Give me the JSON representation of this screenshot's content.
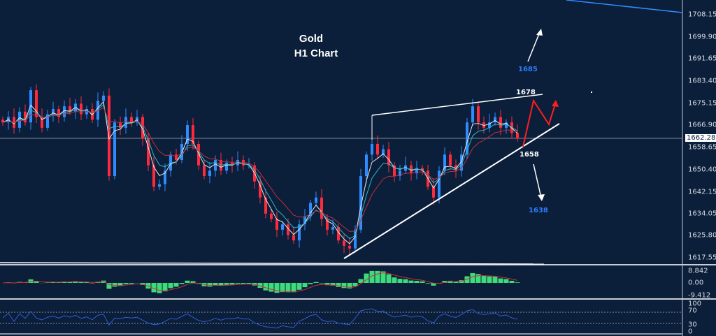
{
  "title": {
    "line1": "Gold",
    "line2": "H1 Chart"
  },
  "annotations": {
    "target_up": "1685",
    "resistance": "1678",
    "support": "1658",
    "target_down": "1638"
  },
  "colors": {
    "background": "#0b1e3a",
    "bull": "#2f8cff",
    "bear": "#ff2a3c",
    "projection": "#ff1e1e",
    "macd_hist": "#3ddc7a",
    "macd_signal": "#d0303a",
    "rsi": "#2f5fd0",
    "label_blue": "#2f7bff"
  },
  "current_price": "1662.28",
  "chart_data": {
    "type": "candlestick",
    "symbol": "Gold",
    "timeframe": "H1",
    "ylim": [
      1617.55,
      1708.15
    ],
    "y_ticks": [
      "1708.15",
      "1699.90",
      "1691.65",
      "1683.40",
      "1675.15",
      "1666.90",
      "1658.65",
      "1650.40",
      "1642.15",
      "1634.05",
      "1625.80",
      "1617.55"
    ],
    "closes": [
      1668,
      1670,
      1666,
      1672,
      1668,
      1680,
      1670,
      1666,
      1671,
      1673,
      1670,
      1674,
      1672,
      1675,
      1671,
      1673,
      1669,
      1676,
      1678,
      1648,
      1668,
      1666,
      1670,
      1668,
      1670,
      1662,
      1652,
      1644,
      1645,
      1650,
      1656,
      1654,
      1660,
      1667,
      1660,
      1652,
      1648,
      1650,
      1654,
      1650,
      1653,
      1652,
      1654,
      1652,
      1652,
      1646,
      1640,
      1634,
      1632,
      1628,
      1630,
      1626,
      1624,
      1630,
      1633,
      1638,
      1640,
      1632,
      1628,
      1629,
      1624,
      1622,
      1621,
      1628,
      1648,
      1656,
      1660,
      1656,
      1658,
      1652,
      1648,
      1650,
      1652,
      1649,
      1651,
      1650,
      1644,
      1640,
      1650,
      1656,
      1652,
      1650,
      1656,
      1668,
      1674,
      1668,
      1666,
      1668,
      1670,
      1666,
      1668,
      1664,
      1662
    ],
    "macd": {
      "ticks": [
        "8.842",
        "0.00",
        "-9.412"
      ]
    },
    "rsi": {
      "ticks": [
        "100",
        "70",
        "30",
        "0"
      ],
      "levels": [
        70,
        30
      ]
    }
  }
}
